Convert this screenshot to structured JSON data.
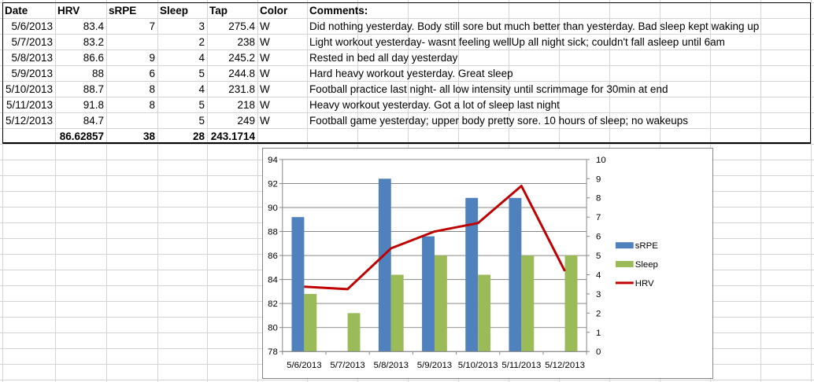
{
  "sheet": {
    "headers": [
      "Date",
      "HRV",
      "sRPE",
      "Sleep",
      "Tap",
      "Color",
      "Comments:"
    ],
    "rows": [
      [
        "5/6/2013",
        "83.4",
        "7",
        "3",
        "275.4",
        "W",
        "Did nothing yesterday. Body still sore but much better than yesterday. Bad sleep kept waking up"
      ],
      [
        "5/7/2013",
        "83.2",
        "",
        "2",
        "238",
        "W",
        "Light workout yesterday- wasnt feeling wellUp all night sick; couldn't fall asleep until 6am"
      ],
      [
        "5/8/2013",
        "86.6",
        "9",
        "4",
        "245.2",
        "W",
        "Rested in bed all day yesterday"
      ],
      [
        "5/9/2013",
        "88",
        "6",
        "5",
        "244.8",
        "W",
        "Hard heavy workout yesterday. Great sleep"
      ],
      [
        "5/10/2013",
        "88.7",
        "8",
        "4",
        "231.8",
        "W",
        "Football practice last night- all low intensity until scrimmage for 30min at end"
      ],
      [
        "5/11/2013",
        "91.8",
        "8",
        "5",
        "218",
        "W",
        "Heavy workout yesterday. Got a lot of sleep last night"
      ],
      [
        "5/12/2013",
        "84.7",
        "",
        "5",
        "249",
        "W",
        "Football game yesterday; upper body pretty sore. 10 hours of sleep; no wakeups"
      ]
    ],
    "totals": [
      "",
      "86.62857",
      "38",
      "28",
      "243.1714",
      "",
      ""
    ]
  },
  "chart_data": {
    "type": "bar",
    "categories": [
      "5/6/2013",
      "5/7/2013",
      "5/8/2013",
      "5/9/2013",
      "5/10/2013",
      "5/11/2013",
      "5/12/2013"
    ],
    "series": [
      {
        "name": "sRPE",
        "type": "bar",
        "axis": "right",
        "color": "#4f81bd",
        "values": [
          7,
          null,
          9,
          6,
          8,
          8,
          null
        ]
      },
      {
        "name": "Sleep",
        "type": "bar",
        "axis": "right",
        "color": "#9bbb59",
        "values": [
          3,
          2,
          4,
          5,
          4,
          5,
          5
        ]
      },
      {
        "name": "HRV",
        "type": "line",
        "axis": "left",
        "color": "#c00000",
        "values": [
          83.4,
          83.2,
          86.6,
          88,
          88.7,
          91.8,
          84.7
        ]
      }
    ],
    "ylim_left": [
      78,
      94
    ],
    "yticks_left": [
      "78",
      "80",
      "82",
      "84",
      "86",
      "88",
      "90",
      "92",
      "94"
    ],
    "ylim_right": [
      0,
      10
    ],
    "yticks_right": [
      "0",
      "1",
      "2",
      "3",
      "4",
      "5",
      "6",
      "7",
      "8",
      "9",
      "10"
    ],
    "grid": true,
    "legend": "right"
  }
}
